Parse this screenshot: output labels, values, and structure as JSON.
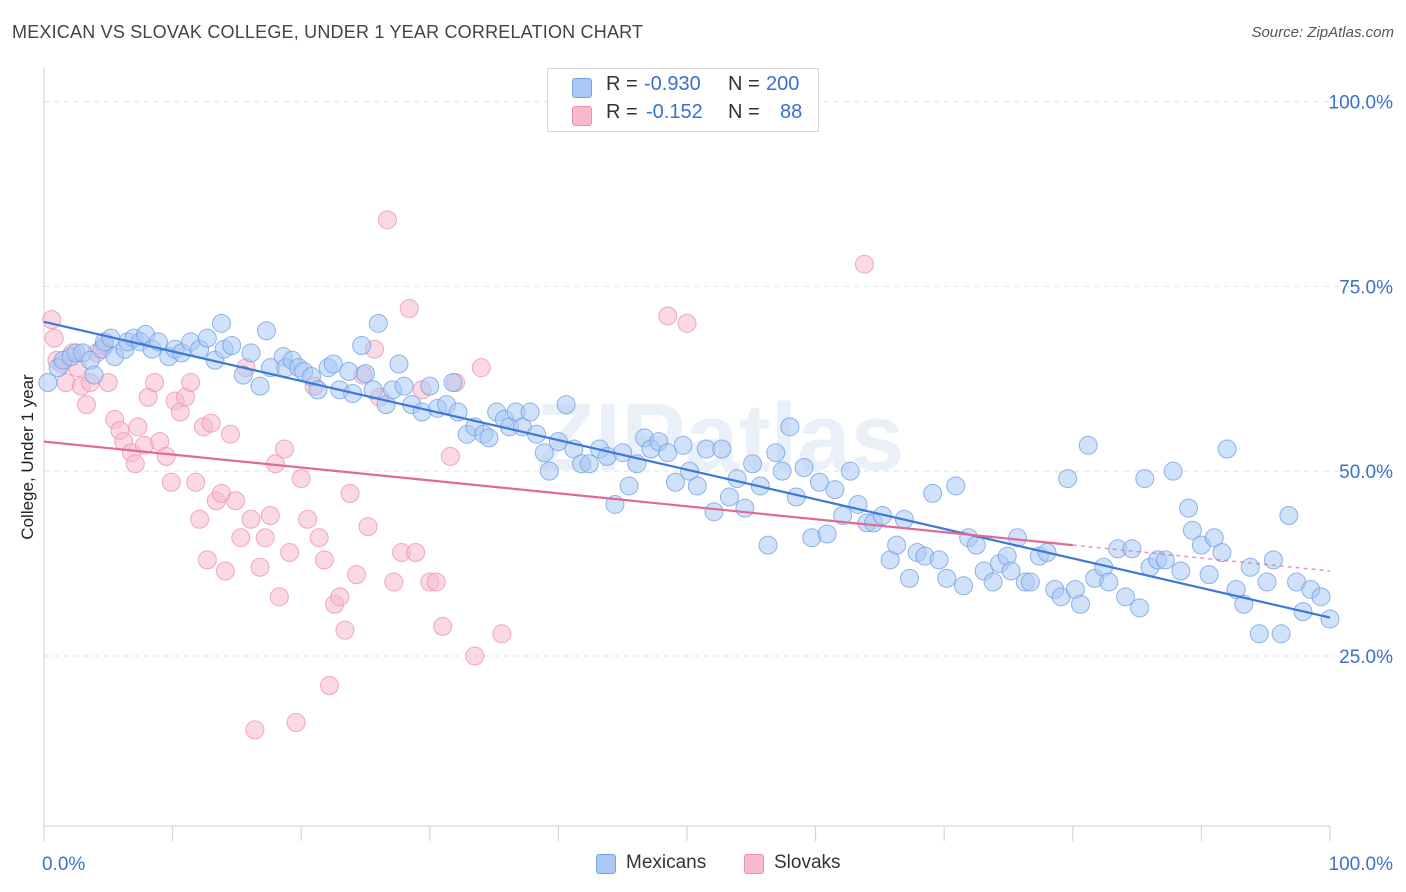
{
  "title": "MEXICAN VS SLOVAK COLLEGE, UNDER 1 YEAR CORRELATION CHART",
  "source": "Source: ZipAtlas.com",
  "watermark": "ZIPatlas",
  "legend_top": {
    "rows": [
      {
        "r_label": "R =",
        "r_value": "-0.930",
        "n_label": "N =",
        "n_value": "200",
        "color": "#a9c8f5"
      },
      {
        "r_label": "R =",
        "r_value": "-0.152",
        "n_label": "N =",
        "n_value": "88",
        "color": "#f7b9cd"
      }
    ]
  },
  "bottom_legend": {
    "items": [
      {
        "label": "Mexicans",
        "color": "#a9c8f5"
      },
      {
        "label": "Slovaks",
        "color": "#f7b9cd"
      }
    ]
  },
  "chart_data": {
    "type": "scatter",
    "xlabel": "",
    "ylabel": "College, Under 1 year",
    "x_tick_labels": [
      "0.0%",
      "100.0%"
    ],
    "y_tick_labels": [
      "100.0%",
      "75.0%",
      "50.0%",
      "25.0%"
    ],
    "xlim": [
      0,
      100
    ],
    "ylim": [
      2,
      104
    ],
    "y_ticks": [
      100,
      75,
      50,
      25
    ],
    "grid": "horizontal dashed",
    "colors": {
      "mexicans": "#3b78d8",
      "mexicans_fill": "#a9c8f5",
      "slovaks": "#e06a96",
      "slovaks_fill": "#f7b9cd",
      "axis_label": "#3b6fd1"
    },
    "series": [
      {
        "name": "Mexicans",
        "trend": {
          "x": [
            0,
            100
          ],
          "y": [
            70.2,
            30.2
          ]
        },
        "points": [
          [
            0.3,
            62
          ],
          [
            1.1,
            64
          ],
          [
            1.5,
            65
          ],
          [
            2.1,
            65.5
          ],
          [
            2.5,
            66
          ],
          [
            3,
            66
          ],
          [
            3.6,
            65
          ],
          [
            3.9,
            63
          ],
          [
            4.5,
            66.5
          ],
          [
            4.7,
            67.5
          ],
          [
            5.2,
            68
          ],
          [
            5.5,
            65.5
          ],
          [
            6.3,
            66.5
          ],
          [
            6.5,
            67.5
          ],
          [
            7.0,
            68
          ],
          [
            7.5,
            67.5
          ],
          [
            7.9,
            68.5
          ],
          [
            8.4,
            66.5
          ],
          [
            8.9,
            67.5
          ],
          [
            9.7,
            65.5
          ],
          [
            10.2,
            66.5
          ],
          [
            10.7,
            66
          ],
          [
            11.4,
            67.5
          ],
          [
            12.1,
            66.5
          ],
          [
            12.7,
            68
          ],
          [
            13.3,
            65
          ],
          [
            13.8,
            70
          ],
          [
            14.0,
            66.5
          ],
          [
            14.6,
            67
          ],
          [
            15.5,
            63
          ],
          [
            16.1,
            66
          ],
          [
            16.8,
            61.5
          ],
          [
            17.3,
            69
          ],
          [
            17.6,
            64
          ],
          [
            18.6,
            65.5
          ],
          [
            18.8,
            64
          ],
          [
            19.3,
            65
          ],
          [
            19.8,
            64
          ],
          [
            20.2,
            63.5
          ],
          [
            20.8,
            62.8
          ],
          [
            21.3,
            61
          ],
          [
            22.1,
            64
          ],
          [
            22.5,
            64.5
          ],
          [
            23.0,
            61
          ],
          [
            23.7,
            63.5
          ],
          [
            24.0,
            60.5
          ],
          [
            24.7,
            67
          ],
          [
            25.0,
            63.2
          ],
          [
            25.6,
            61
          ],
          [
            26,
            70
          ],
          [
            26.6,
            59
          ],
          [
            27.1,
            61
          ],
          [
            27.6,
            64.5
          ],
          [
            28.0,
            61.5
          ],
          [
            28.6,
            59
          ],
          [
            29.4,
            58
          ],
          [
            30.0,
            61.5
          ],
          [
            30.6,
            58.5
          ],
          [
            31.3,
            59
          ],
          [
            31.8,
            62
          ],
          [
            32.2,
            58
          ],
          [
            32.9,
            55
          ],
          [
            33.5,
            56
          ],
          [
            34.2,
            55
          ],
          [
            34.6,
            54.5
          ],
          [
            35.2,
            58
          ],
          [
            35.8,
            57
          ],
          [
            36.2,
            56
          ],
          [
            36.7,
            58
          ],
          [
            37.2,
            56
          ],
          [
            37.8,
            58
          ],
          [
            38.3,
            55
          ],
          [
            38.9,
            52.5
          ],
          [
            39.3,
            50
          ],
          [
            40,
            54
          ],
          [
            40.6,
            59
          ],
          [
            41.2,
            53
          ],
          [
            41.8,
            51
          ],
          [
            42.4,
            51
          ],
          [
            43.2,
            53
          ],
          [
            43.8,
            52
          ],
          [
            44.4,
            45.5
          ],
          [
            45,
            52.5
          ],
          [
            45.5,
            48
          ],
          [
            46.1,
            51
          ],
          [
            46.7,
            54.5
          ],
          [
            47.2,
            53
          ],
          [
            47.8,
            54
          ],
          [
            48.5,
            52.5
          ],
          [
            49.1,
            48.5
          ],
          [
            49.7,
            53.5
          ],
          [
            50.2,
            50
          ],
          [
            50.8,
            48
          ],
          [
            51.5,
            53
          ],
          [
            52.1,
            44.5
          ],
          [
            52.7,
            53
          ],
          [
            53.3,
            46.5
          ],
          [
            53.9,
            49
          ],
          [
            54.5,
            45
          ],
          [
            55.1,
            51
          ],
          [
            55.7,
            48
          ],
          [
            56.3,
            40
          ],
          [
            56.9,
            52.5
          ],
          [
            57.4,
            50
          ],
          [
            58,
            56
          ],
          [
            58.5,
            46.5
          ],
          [
            59.1,
            50.5
          ],
          [
            59.7,
            41
          ],
          [
            60.3,
            48.5
          ],
          [
            60.9,
            41.5
          ],
          [
            61.5,
            47.5
          ],
          [
            62.1,
            44
          ],
          [
            62.7,
            50
          ],
          [
            63.3,
            45.5
          ],
          [
            64,
            43
          ],
          [
            64.5,
            43
          ],
          [
            65.2,
            44
          ],
          [
            65.8,
            38
          ],
          [
            66.3,
            40
          ],
          [
            66.9,
            43.5
          ],
          [
            67.3,
            35.5
          ],
          [
            67.9,
            39
          ],
          [
            68.5,
            38.5
          ],
          [
            69.1,
            47
          ],
          [
            69.6,
            38
          ],
          [
            70.2,
            35.5
          ],
          [
            70.9,
            48
          ],
          [
            71.5,
            34.5
          ],
          [
            71.9,
            41
          ],
          [
            72.5,
            40
          ],
          [
            73.1,
            36.5
          ],
          [
            73.8,
            35
          ],
          [
            74.3,
            37.5
          ],
          [
            74.9,
            38.5
          ],
          [
            75.2,
            36.5
          ],
          [
            75.7,
            41
          ],
          [
            76.3,
            35
          ],
          [
            76.7,
            35
          ],
          [
            77.4,
            38.5
          ],
          [
            78.0,
            39
          ],
          [
            78.6,
            34
          ],
          [
            79.1,
            33
          ],
          [
            79.6,
            49
          ],
          [
            80.2,
            34
          ],
          [
            80.6,
            32
          ],
          [
            81.2,
            53.5
          ],
          [
            81.7,
            35.5
          ],
          [
            82.4,
            37
          ],
          [
            82.8,
            35
          ],
          [
            83.5,
            39.5
          ],
          [
            84.1,
            33
          ],
          [
            84.6,
            39.5
          ],
          [
            85.2,
            31.5
          ],
          [
            85.6,
            49
          ],
          [
            86,
            37
          ],
          [
            86.6,
            38
          ],
          [
            87.2,
            38
          ],
          [
            87.8,
            50
          ],
          [
            88.4,
            36.5
          ],
          [
            89.0,
            45
          ],
          [
            89.3,
            42
          ],
          [
            90,
            40
          ],
          [
            90.6,
            36
          ],
          [
            91,
            41
          ],
          [
            91.6,
            39
          ],
          [
            92.0,
            53
          ],
          [
            92.7,
            34
          ],
          [
            93.3,
            32
          ],
          [
            93.8,
            37
          ],
          [
            94.5,
            28
          ],
          [
            95.1,
            35
          ],
          [
            95.6,
            38
          ],
          [
            96.2,
            28
          ],
          [
            96.8,
            44
          ],
          [
            97.4,
            35
          ],
          [
            97.9,
            31
          ],
          [
            98.5,
            34
          ],
          [
            99.3,
            33
          ],
          [
            100,
            30
          ]
        ]
      },
      {
        "name": "Slovaks",
        "trend": {
          "x": [
            0,
            80
          ],
          "y": [
            54,
            40
          ]
        },
        "points": [
          [
            0.6,
            70.5
          ],
          [
            0.8,
            68
          ],
          [
            1.0,
            65
          ],
          [
            1.4,
            64.5
          ],
          [
            1.7,
            62
          ],
          [
            2.2,
            66
          ],
          [
            2.6,
            64
          ],
          [
            2.9,
            61.5
          ],
          [
            3.3,
            59
          ],
          [
            3.6,
            62
          ],
          [
            4.1,
            66
          ],
          [
            4.7,
            67
          ],
          [
            5.0,
            62
          ],
          [
            5.5,
            57
          ],
          [
            5.9,
            55.5
          ],
          [
            6.2,
            54
          ],
          [
            6.8,
            52.5
          ],
          [
            7.1,
            51
          ],
          [
            7.3,
            56
          ],
          [
            7.8,
            53.5
          ],
          [
            8.1,
            60
          ],
          [
            8.6,
            62
          ],
          [
            9.0,
            54
          ],
          [
            9.5,
            52
          ],
          [
            9.9,
            48.5
          ],
          [
            10.2,
            59.5
          ],
          [
            10.6,
            58
          ],
          [
            11.0,
            60
          ],
          [
            11.4,
            62
          ],
          [
            11.8,
            48.5
          ],
          [
            12.1,
            43.5
          ],
          [
            12.4,
            56
          ],
          [
            12.7,
            38
          ],
          [
            13.0,
            56.5
          ],
          [
            13.4,
            46
          ],
          [
            13.8,
            47
          ],
          [
            14.1,
            36.5
          ],
          [
            14.5,
            55
          ],
          [
            14.9,
            46
          ],
          [
            15.3,
            41
          ],
          [
            15.7,
            64
          ],
          [
            16.1,
            43.5
          ],
          [
            16.4,
            15
          ],
          [
            16.8,
            37
          ],
          [
            17.2,
            41
          ],
          [
            17.6,
            44
          ],
          [
            18.0,
            51
          ],
          [
            18.3,
            33
          ],
          [
            18.7,
            53
          ],
          [
            19.1,
            39
          ],
          [
            19.6,
            16
          ],
          [
            20.0,
            49
          ],
          [
            20.5,
            43.5
          ],
          [
            21.0,
            61.5
          ],
          [
            21.4,
            41
          ],
          [
            21.8,
            38
          ],
          [
            22.2,
            21
          ],
          [
            22.6,
            32
          ],
          [
            23.0,
            33
          ],
          [
            23.4,
            28.5
          ],
          [
            23.8,
            47
          ],
          [
            24.3,
            36
          ],
          [
            24.8,
            63
          ],
          [
            25.2,
            42.5
          ],
          [
            25.7,
            66.5
          ],
          [
            26.1,
            60
          ],
          [
            26.7,
            84
          ],
          [
            27.2,
            35
          ],
          [
            27.8,
            39
          ],
          [
            28.4,
            72
          ],
          [
            28.9,
            39
          ],
          [
            29.4,
            61
          ],
          [
            30,
            35
          ],
          [
            30.5,
            35
          ],
          [
            31,
            29
          ],
          [
            31.6,
            52
          ],
          [
            32.0,
            62
          ],
          [
            33.5,
            25
          ],
          [
            34.0,
            64
          ],
          [
            35.6,
            28
          ],
          [
            48.5,
            71
          ],
          [
            50.0,
            70
          ],
          [
            63.8,
            78
          ]
        ]
      }
    ]
  }
}
